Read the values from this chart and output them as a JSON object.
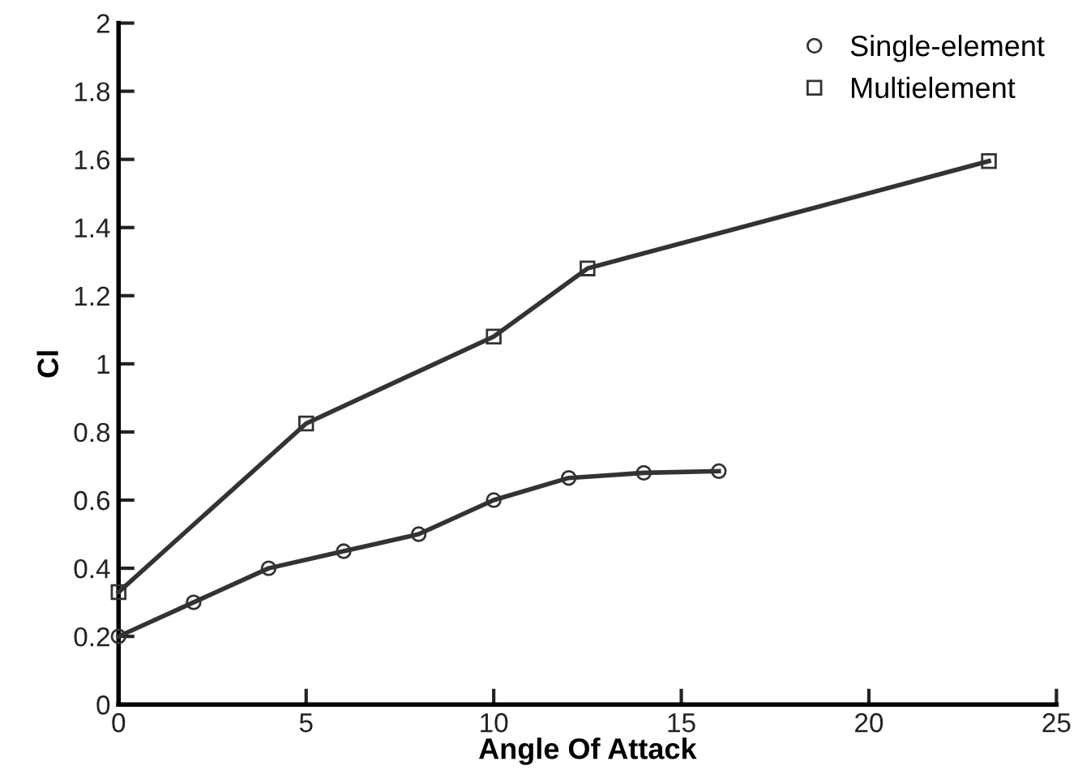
{
  "chart_data": {
    "type": "line",
    "xlabel": "Angle Of Attack",
    "ylabel": "Cl",
    "xlim": [
      0,
      25
    ],
    "xticks": [
      0,
      5,
      10,
      15,
      20,
      25
    ],
    "ylim": [
      0,
      2
    ],
    "yticks": [
      0,
      0.2,
      0.4,
      0.6,
      0.8,
      1,
      1.2,
      1.4,
      1.6,
      1.8,
      2
    ],
    "legend": "top right",
    "grid": false,
    "series": [
      {
        "name": "Single-element",
        "color": "#333333",
        "marker": "circle",
        "x": [
          0,
          2,
          4,
          6,
          8,
          10,
          12,
          14,
          16
        ],
        "values": [
          0.2,
          0.3,
          0.4,
          0.45,
          0.5,
          0.6,
          0.665,
          0.68,
          0.685
        ]
      },
      {
        "name": "Multielement",
        "color": "#333333",
        "marker": "square",
        "x": [
          0,
          5,
          10,
          12.5,
          23.2
        ],
        "values": [
          0.33,
          0.825,
          1.08,
          1.28,
          1.595
        ]
      }
    ]
  }
}
